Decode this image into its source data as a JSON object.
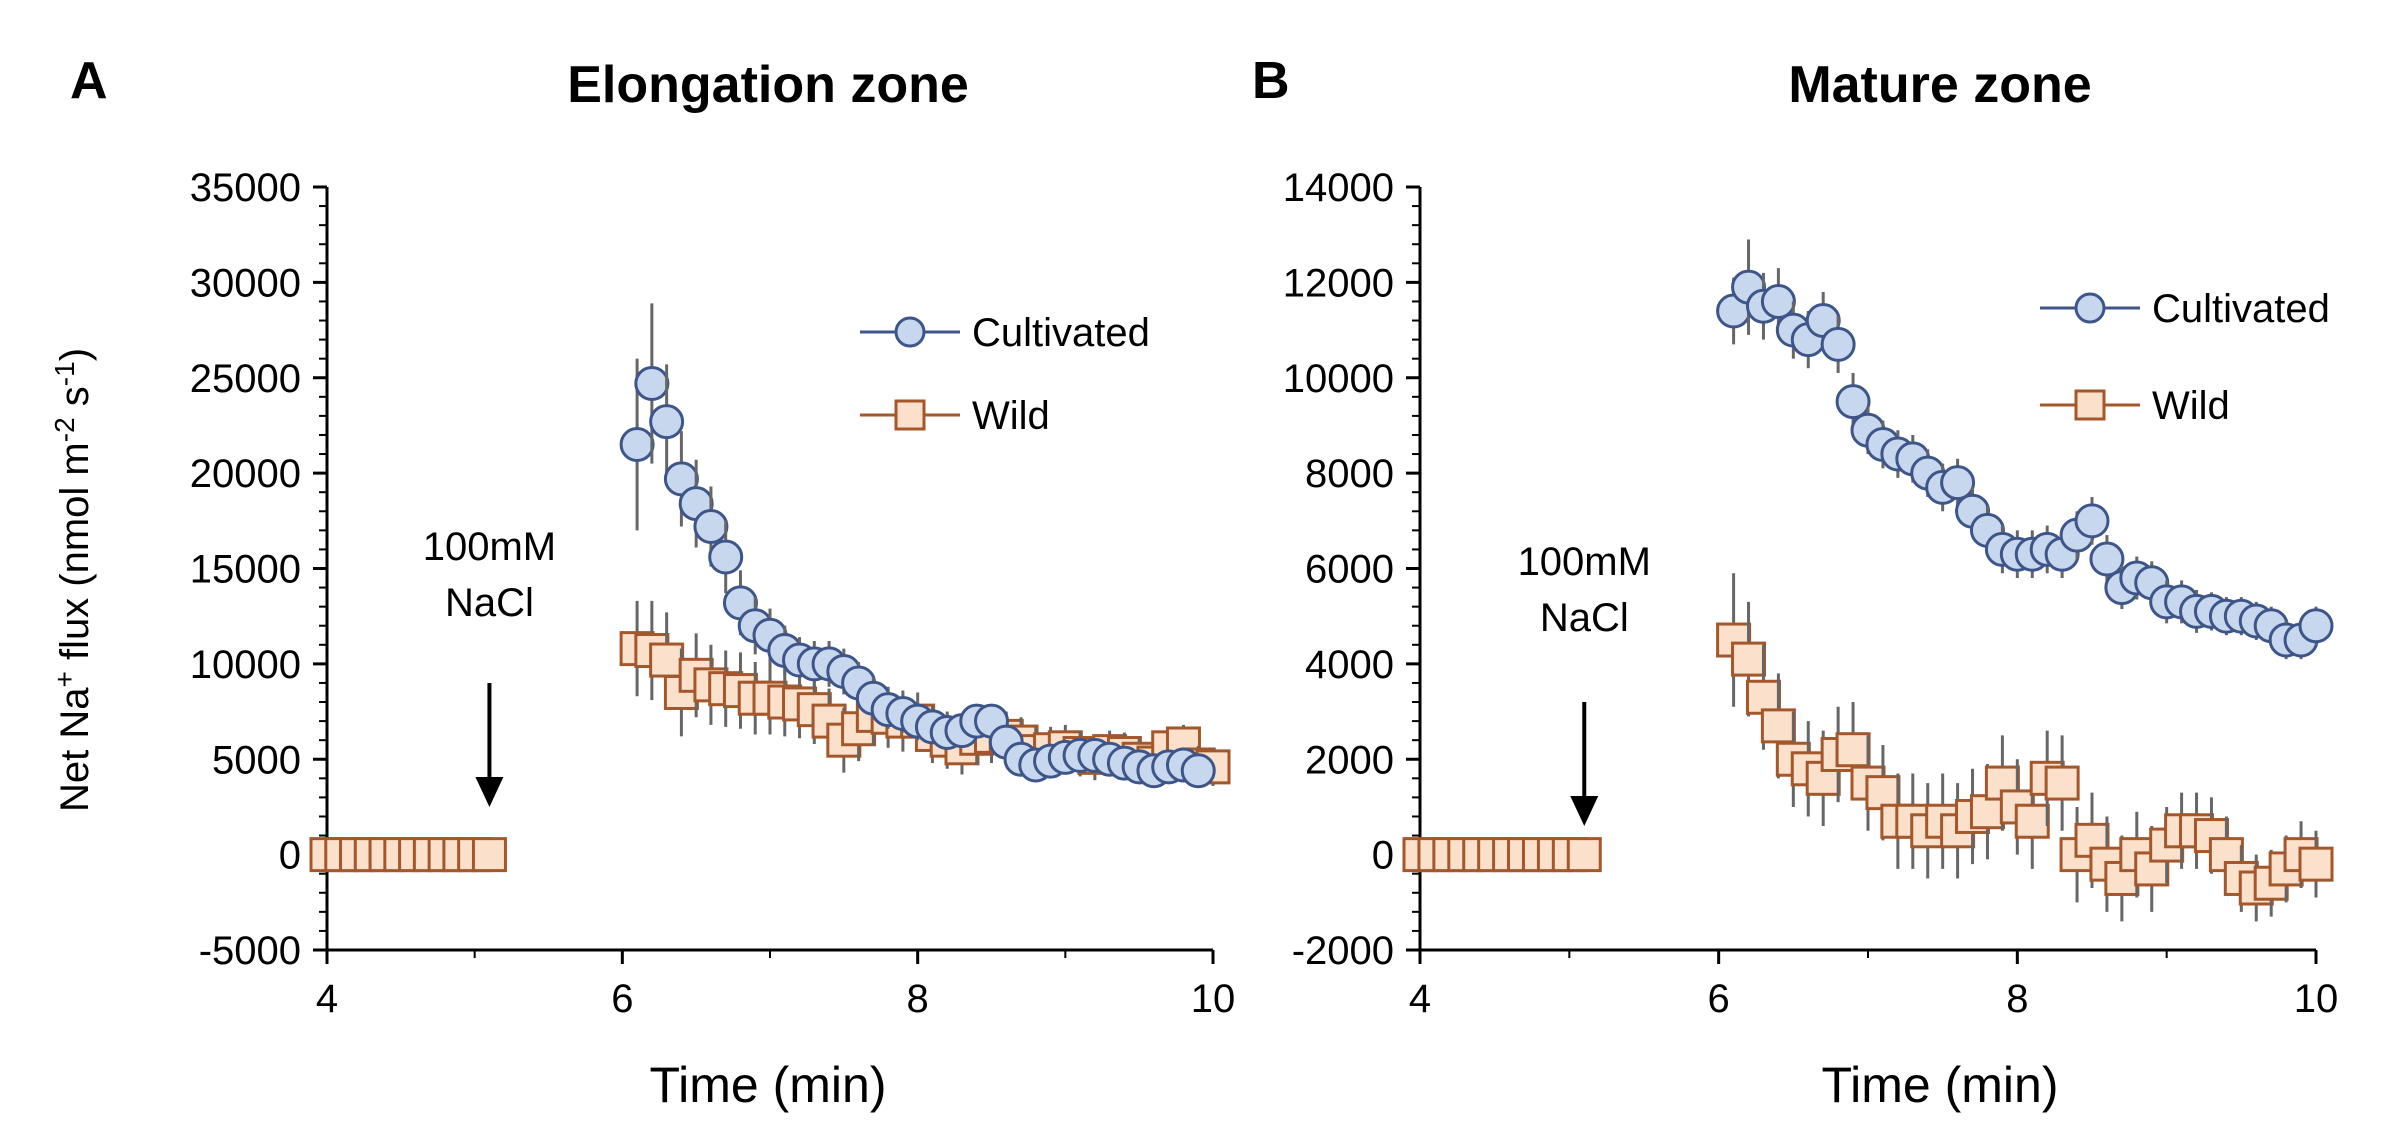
{
  "colors": {
    "cultivated_fill": "#c6d7ee",
    "cultivated_stroke": "#3d5588",
    "wild_fill": "#fbe0cb",
    "wild_stroke": "#a4572a",
    "error_bar": "#666666",
    "axis": "#000000"
  },
  "y_axis_label": {
    "prefix": "Net Na",
    "sup1": "+",
    "middle": " flux (nmol m",
    "sup2": "-2",
    "middle2": " s",
    "sup3": "-1",
    "suffix": ")"
  },
  "chart_data": [
    {
      "type": "scatter",
      "panel_label": "A",
      "title": "Elongation zone",
      "xlabel": "Time (min)",
      "xlim": [
        4,
        10
      ],
      "ylim": [
        -5000,
        35000
      ],
      "x_ticks": [
        "4",
        "6",
        "8",
        "10"
      ],
      "y_ticks": [
        "-5000",
        "0",
        "5000",
        "10000",
        "15000",
        "20000",
        "25000",
        "30000",
        "35000"
      ],
      "annotation": {
        "line1": "100mM",
        "line2": "NaCl",
        "x": 5.1,
        "arrow_from": 9000,
        "arrow_to": 2500
      },
      "legend": [
        "Cultivated",
        "Wild"
      ],
      "series": [
        {
          "name": "Cultivated",
          "marker": "circle",
          "x": [
            6.1,
            6.2,
            6.3,
            6.4,
            6.5,
            6.6,
            6.7,
            6.8,
            6.9,
            7.0,
            7.1,
            7.2,
            7.3,
            7.4,
            7.5,
            7.6,
            7.7,
            7.8,
            7.9,
            8.0,
            8.1,
            8.2,
            8.3,
            8.4,
            8.5,
            8.6,
            8.7,
            8.8,
            8.9,
            9.0,
            9.1,
            9.2,
            9.3,
            9.4,
            9.5,
            9.6,
            9.7,
            9.8,
            9.9
          ],
          "y": [
            21500,
            24700,
            22700,
            19700,
            18400,
            17200,
            15600,
            13200,
            12000,
            11500,
            10700,
            10200,
            10000,
            10000,
            9600,
            9000,
            8200,
            7600,
            7400,
            7000,
            6700,
            6400,
            6500,
            7000,
            7000,
            5900,
            5000,
            4700,
            4900,
            5100,
            5200,
            5200,
            5000,
            4800,
            4600,
            4400,
            4600,
            4700,
            4400
          ],
          "err": [
            4500,
            4200,
            3000,
            2500,
            2300,
            2100,
            1900,
            1700,
            1500,
            1400,
            1300,
            1200,
            1200,
            1200,
            1200,
            1100,
            1100,
            1000,
            1000,
            1000,
            900,
            900,
            900,
            900,
            900,
            800,
            800,
            800,
            800,
            800,
            700,
            700,
            700,
            700,
            700,
            700,
            700,
            700,
            700
          ]
        },
        {
          "name": "Wild",
          "marker": "square",
          "x": [
            4.0,
            4.1,
            4.2,
            4.3,
            4.4,
            4.5,
            4.6,
            4.7,
            4.8,
            4.9,
            5.0,
            5.1,
            6.1,
            6.2,
            6.3,
            6.4,
            6.5,
            6.6,
            6.7,
            6.8,
            6.9,
            7.0,
            7.1,
            7.2,
            7.3,
            7.4,
            7.5,
            7.6,
            7.7,
            7.8,
            7.9,
            8.0,
            8.1,
            8.2,
            8.3,
            8.4,
            8.5,
            8.6,
            8.7,
            8.8,
            8.9,
            9.0,
            9.1,
            9.2,
            9.3,
            9.4,
            9.5,
            9.6,
            9.7,
            9.8,
            9.9,
            10.0
          ],
          "y": [
            0,
            0,
            0,
            0,
            0,
            0,
            0,
            0,
            0,
            0,
            0,
            0,
            10800,
            10700,
            10200,
            8500,
            9400,
            8900,
            8700,
            8600,
            8200,
            8200,
            8000,
            7900,
            7600,
            7000,
            6000,
            6600,
            7300,
            7200,
            7000,
            7000,
            6300,
            6000,
            5600,
            6100,
            6200,
            6200,
            5900,
            5400,
            5500,
            5600,
            5300,
            5100,
            5400,
            5300,
            5000,
            4800,
            5600,
            5800,
            4700,
            4600
          ],
          "err": [
            0,
            0,
            0,
            0,
            0,
            0,
            0,
            0,
            0,
            0,
            0,
            0,
            2500,
            2600,
            2500,
            2300,
            2200,
            2100,
            2000,
            2000,
            1900,
            1900,
            1800,
            1800,
            1800,
            1700,
            1700,
            1700,
            1600,
            1600,
            1600,
            1500,
            1500,
            1500,
            1400,
            1400,
            1400,
            1300,
            1300,
            1300,
            1200,
            1200,
            1200,
            1200,
            1100,
            1100,
            1100,
            1100,
            1000,
            1000,
            1000,
            1000
          ]
        }
      ]
    },
    {
      "type": "scatter",
      "panel_label": "B",
      "title": "Mature zone",
      "xlabel": "Time (min)",
      "xlim": [
        4,
        10
      ],
      "ylim": [
        -2000,
        14000
      ],
      "x_ticks": [
        "4",
        "6",
        "8",
        "10"
      ],
      "y_ticks": [
        "-2000",
        "0",
        "2000",
        "4000",
        "6000",
        "8000",
        "10000",
        "12000",
        "14000"
      ],
      "annotation": {
        "line1": "100mM",
        "line2": "NaCl",
        "x": 5.1,
        "arrow_from": 3200,
        "arrow_to": 600
      },
      "legend": [
        "Cultivated",
        "Wild"
      ],
      "series": [
        {
          "name": "Cultivated",
          "marker": "circle",
          "x": [
            6.1,
            6.2,
            6.3,
            6.4,
            6.5,
            6.6,
            6.7,
            6.8,
            6.9,
            7.0,
            7.1,
            7.2,
            7.3,
            7.4,
            7.5,
            7.6,
            7.7,
            7.8,
            7.9,
            8.0,
            8.1,
            8.2,
            8.3,
            8.4,
            8.5,
            8.6,
            8.7,
            8.8,
            8.9,
            9.0,
            9.1,
            9.2,
            9.3,
            9.4,
            9.5,
            9.6,
            9.7,
            9.8,
            9.9,
            10.0
          ],
          "y": [
            11400,
            11900,
            11500,
            11600,
            11000,
            10800,
            11200,
            10700,
            9500,
            8900,
            8600,
            8400,
            8300,
            8000,
            7700,
            7800,
            7200,
            6800,
            6400,
            6300,
            6300,
            6400,
            6300,
            6700,
            7000,
            6200,
            5600,
            5800,
            5700,
            5300,
            5300,
            5100,
            5100,
            5000,
            5000,
            4900,
            4800,
            4500,
            4500,
            4800
          ],
          "err": [
            700,
            1000,
            700,
            700,
            600,
            600,
            600,
            600,
            600,
            500,
            500,
            500,
            500,
            500,
            500,
            500,
            500,
            500,
            500,
            500,
            500,
            500,
            500,
            500,
            500,
            500,
            450,
            450,
            450,
            450,
            450,
            450,
            400,
            400,
            400,
            400,
            400,
            400,
            400,
            400
          ]
        },
        {
          "name": "Wild",
          "marker": "square",
          "x": [
            4.0,
            4.1,
            4.2,
            4.3,
            4.4,
            4.5,
            4.6,
            4.7,
            4.8,
            4.9,
            5.0,
            5.1,
            6.1,
            6.2,
            6.3,
            6.4,
            6.5,
            6.6,
            6.7,
            6.8,
            6.9,
            7.0,
            7.1,
            7.2,
            7.3,
            7.4,
            7.5,
            7.6,
            7.7,
            7.8,
            7.9,
            8.0,
            8.1,
            8.2,
            8.3,
            8.4,
            8.5,
            8.6,
            8.7,
            8.8,
            8.9,
            9.0,
            9.1,
            9.2,
            9.3,
            9.4,
            9.5,
            9.6,
            9.7,
            9.8,
            9.9,
            10.0
          ],
          "y": [
            0,
            0,
            0,
            0,
            0,
            0,
            0,
            0,
            0,
            0,
            0,
            0,
            4500,
            4100,
            3300,
            2700,
            2000,
            1800,
            1600,
            2100,
            2200,
            1500,
            1300,
            700,
            700,
            500,
            700,
            500,
            800,
            900,
            1500,
            1000,
            700,
            1600,
            1500,
            0,
            300,
            -200,
            -500,
            0,
            -300,
            200,
            500,
            500,
            400,
            0,
            -500,
            -700,
            -600,
            -300,
            0,
            -200
          ],
          "err": [
            0,
            0,
            0,
            0,
            0,
            0,
            0,
            0,
            0,
            0,
            0,
            0,
            1400,
            1200,
            1100,
            1100,
            1000,
            1000,
            1000,
            1000,
            1000,
            1000,
            1000,
            1000,
            1000,
            1000,
            1000,
            1000,
            1000,
            1000,
            1000,
            1000,
            1000,
            1000,
            1000,
            1000,
            1000,
            1000,
            900,
            900,
            900,
            800,
            800,
            800,
            800,
            800,
            700,
            700,
            700,
            700,
            700,
            700
          ]
        }
      ]
    }
  ]
}
